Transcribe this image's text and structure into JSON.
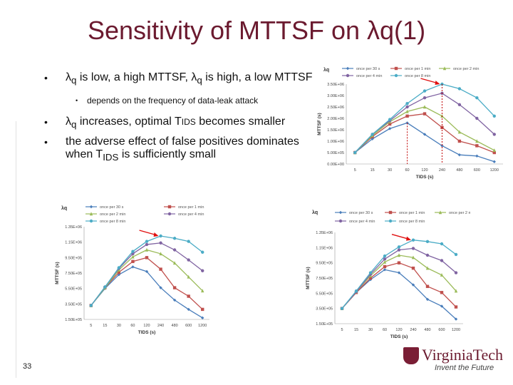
{
  "slide": {
    "title": "Sensitivity of MTTSF on λq(1)",
    "number": "33",
    "bullets": [
      {
        "lambda": "λ",
        "sub": "q",
        "text1": " is low, a high MTTSF, ",
        "lambda2": "λ",
        "sub2": "q",
        "text2": " is high, a low MTTSF"
      },
      {
        "text": "depends on the frequency of data-leak attack"
      },
      {
        "lambda": "λ",
        "sub": "q",
        "text": " increases, optimal T",
        "tids": "IDS",
        "text2": " becomes smaller"
      },
      {
        "text1": "the adverse effect of false positives dominates when T",
        "sub": "IDS",
        "text2": " is sufficiently small"
      }
    ],
    "logo": {
      "name": "VirginiaTech",
      "tagline": "Invent the Future"
    }
  },
  "chart_data": [
    {
      "type": "line",
      "corner_label": "λq",
      "xlabel": "TIDS (s)",
      "ylabel": "MTTSF (s)",
      "categories": [
        "5",
        "15",
        "30",
        "60",
        "120",
        "240",
        "480",
        "600",
        "1200"
      ],
      "yticks": [
        "0.00E+00",
        "5.00E+05",
        "1.00E+06",
        "1.50E+06",
        "2.00E+06",
        "2.50E+06",
        "3.00E+06",
        "3.50E+06"
      ],
      "ylim": [
        0,
        3500000
      ],
      "annotation": "arrow to peak; dashed lines at x = 60 and x = 240",
      "series": [
        {
          "name": "once per 30 s",
          "color": "#4a7ebb",
          "values": [
            500000,
            1100000,
            1550000,
            1800000,
            1300000,
            800000,
            400000,
            350000,
            100000
          ]
        },
        {
          "name": "once per 1 min",
          "color": "#c0504d",
          "values": [
            500000,
            1200000,
            1750000,
            2100000,
            2200000,
            1600000,
            1000000,
            800000,
            500000
          ]
        },
        {
          "name": "once per 2 min",
          "color": "#9bbb59",
          "values": [
            500000,
            1250000,
            1850000,
            2300000,
            2500000,
            2100000,
            1400000,
            1000000,
            600000
          ]
        },
        {
          "name": "once per 4 min",
          "color": "#8064a2",
          "values": [
            500000,
            1300000,
            1900000,
            2500000,
            2900000,
            3100000,
            2600000,
            2000000,
            1300000
          ]
        },
        {
          "name": "once per 8 min",
          "color": "#4bacc6",
          "values": [
            500000,
            1300000,
            1950000,
            2650000,
            3200000,
            3500000,
            3300000,
            2900000,
            2100000
          ]
        }
      ]
    },
    {
      "type": "line",
      "corner_label": "λq",
      "xlabel": "TIDS (s)",
      "ylabel": "MTTSF (s)",
      "categories": [
        "5",
        "15",
        "30",
        "60",
        "120",
        "240",
        "480",
        "600",
        "1200"
      ],
      "yticks": [
        "1.50E+05",
        "3.50E+05",
        "5.50E+05",
        "7.50E+05",
        "9.50E+05",
        "1.15E+06",
        "1.35E+06"
      ],
      "ylim": [
        150000,
        1350000
      ],
      "series": [
        {
          "name": "once per 30 s",
          "color": "#4a7ebb",
          "values": [
            330000,
            550000,
            730000,
            830000,
            770000,
            560000,
            400000,
            280000,
            170000
          ]
        },
        {
          "name": "once per 1 min",
          "color": "#c0504d",
          "values": [
            330000,
            560000,
            760000,
            900000,
            950000,
            800000,
            560000,
            450000,
            280000
          ]
        },
        {
          "name": "once per 2 min",
          "color": "#9bbb59",
          "values": [
            330000,
            560000,
            790000,
            960000,
            1050000,
            1000000,
            880000,
            700000,
            520000
          ]
        },
        {
          "name": "once per 4 min",
          "color": "#8064a2",
          "values": [
            330000,
            570000,
            810000,
            1000000,
            1120000,
            1140000,
            1050000,
            920000,
            780000
          ]
        },
        {
          "name": "once per 8 min",
          "color": "#4bacc6",
          "values": [
            330000,
            570000,
            820000,
            1030000,
            1160000,
            1230000,
            1200000,
            1160000,
            1020000
          ]
        }
      ]
    },
    {
      "type": "line",
      "corner_label": "λq",
      "xlabel": "TIDS (s)",
      "ylabel": "MTTSF (s)",
      "categories": [
        "5",
        "15",
        "30",
        "60",
        "120",
        "240",
        "480",
        "600",
        "1200"
      ],
      "yticks": [
        "1.50E+05",
        "3.50E+05",
        "5.50E+05",
        "7.50E+05",
        "9.50E+05",
        "1.15E+06",
        "1.35E+06"
      ],
      "ylim": [
        150000,
        1350000
      ],
      "series": [
        {
          "name": "once per 30 s",
          "color": "#4a7ebb",
          "values": [
            350000,
            560000,
            730000,
            860000,
            820000,
            660000,
            470000,
            380000,
            210000
          ]
        },
        {
          "name": "once per 1 min",
          "color": "#c0504d",
          "values": [
            350000,
            560000,
            750000,
            900000,
            950000,
            880000,
            640000,
            560000,
            370000
          ]
        },
        {
          "name": "once per 2 min",
          "color": "#9bbb59",
          "values": [
            350000,
            570000,
            780000,
            960000,
            1050000,
            1020000,
            880000,
            790000,
            580000
          ]
        },
        {
          "name": "once per 4 min",
          "color": "#8064a2",
          "values": [
            350000,
            570000,
            800000,
            1000000,
            1120000,
            1140000,
            1050000,
            980000,
            820000
          ]
        },
        {
          "name": "once per 8 min",
          "color": "#4bacc6",
          "values": [
            350000,
            580000,
            820000,
            1040000,
            1160000,
            1250000,
            1230000,
            1200000,
            1060000
          ]
        }
      ]
    }
  ]
}
